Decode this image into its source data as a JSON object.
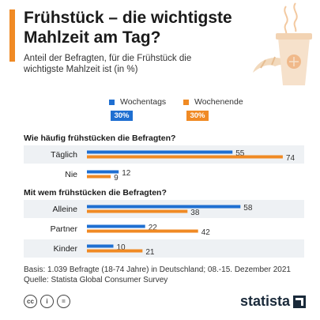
{
  "header": {
    "title": "Frühstück – die wichtigste Mahlzeit am Tag?",
    "subtitle": "Anteil der Befragten, für die Frühstück die wichtigste Mahlzeit ist (in %)"
  },
  "legend": {
    "items": [
      {
        "label": "Wochentags",
        "color": "#1F6FD1",
        "pill": "30%"
      },
      {
        "label": "Wochenende",
        "color": "#F08A24",
        "pill": "30%"
      }
    ]
  },
  "chart_data": {
    "type": "bar",
    "orientation": "horizontal",
    "xlim": [
      0,
      80
    ],
    "series": [
      {
        "name": "Wochentags",
        "color": "#1F6FD1"
      },
      {
        "name": "Wochenende",
        "color": "#F08A24"
      }
    ],
    "groups": [
      {
        "heading": "Wie häufig frühstücken die Befragten?",
        "categories": [
          {
            "label": "Täglich",
            "values": [
              55,
              74
            ]
          },
          {
            "label": "Nie",
            "values": [
              12,
              9
            ]
          }
        ]
      },
      {
        "heading": "Mit wem frühstücken die Befragten?",
        "categories": [
          {
            "label": "Alleine",
            "values": [
              58,
              38
            ]
          },
          {
            "label": "Partner",
            "values": [
              22,
              42
            ]
          },
          {
            "label": "Kinder",
            "values": [
              10,
              21
            ]
          }
        ]
      }
    ]
  },
  "footer": {
    "basis": "Basis: 1.039 Befragte (18-74 Jahre) in Deutschland; 08.-15. Dezember 2021",
    "source": "Quelle: Statista Global Consumer Survey"
  },
  "icons": [
    {
      "name": "cc-icon",
      "text": "cc"
    },
    {
      "name": "info-icon",
      "text": "i"
    },
    {
      "name": "equals-icon",
      "text": "="
    }
  ],
  "brand": "statista"
}
